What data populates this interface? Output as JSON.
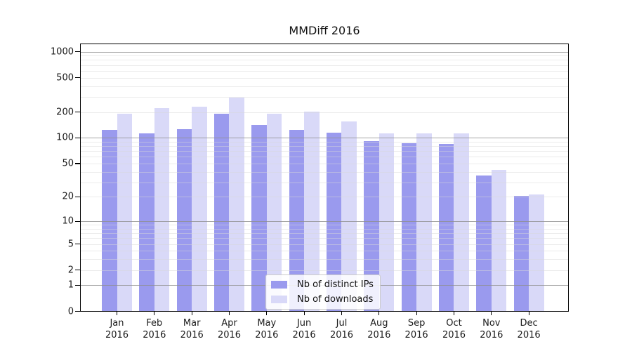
{
  "chart_data": {
    "type": "bar",
    "title": "MMDiff 2016",
    "categories": [
      "Jan",
      "Feb",
      "Mar",
      "Apr",
      "May",
      "Jun",
      "Jul",
      "Aug",
      "Sep",
      "Oct",
      "Nov",
      "Dec"
    ],
    "category_year": "2016",
    "series": [
      {
        "name": "Nb of distinct IPs",
        "color": "#9a9aee",
        "values": [
          127,
          115,
          129,
          194,
          144,
          127,
          118,
          94,
          88,
          87,
          37,
          21
        ]
      },
      {
        "name": "Nb of downloads",
        "color": "#d9d9f8",
        "values": [
          193,
          228,
          234,
          300,
          196,
          205,
          157,
          114,
          114,
          116,
          43,
          22
        ]
      }
    ],
    "yscale": "symlog",
    "yticks": [
      1000,
      500,
      200,
      100,
      50,
      20,
      10,
      5,
      2,
      1,
      0
    ],
    "ylim": [
      0,
      1220
    ],
    "xlabel": "",
    "ylabel": "",
    "grid": true,
    "legend_position": "lower center",
    "colors": {
      "decade_gridline": "#9e9e9e",
      "minor_gridline": "#e9e9e9",
      "axis": "#000000",
      "text": "#1a1a1a",
      "background": "#ffffff"
    }
  }
}
